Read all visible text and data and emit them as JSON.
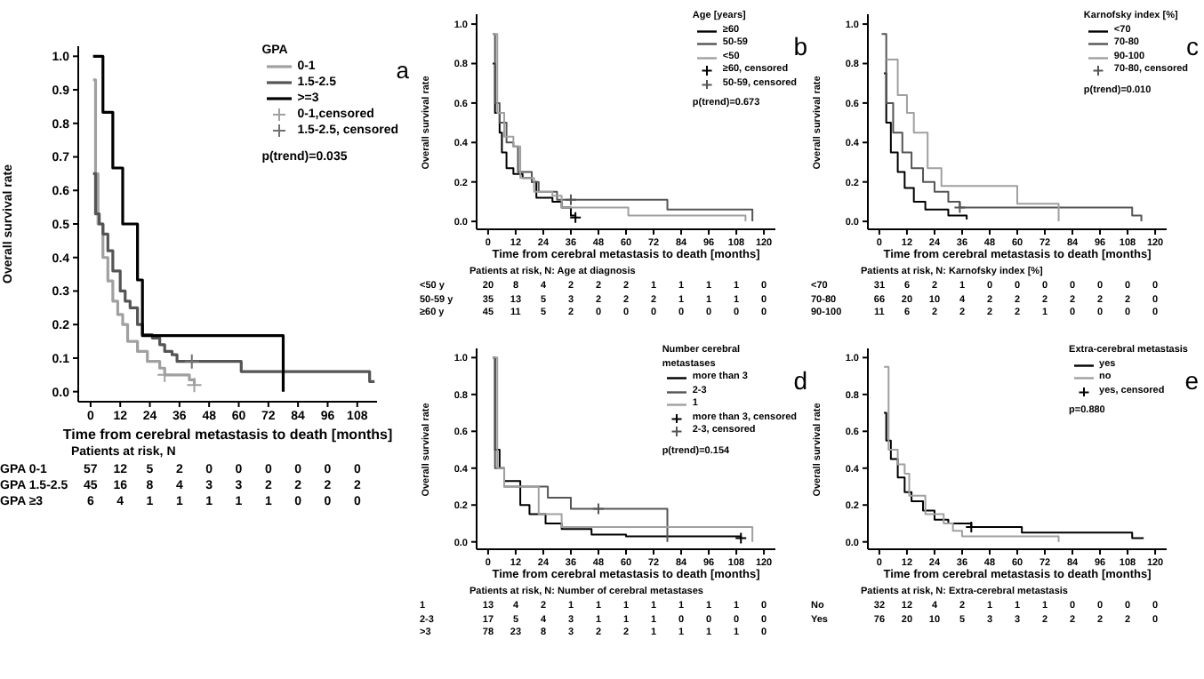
{
  "chart_data": [
    {
      "type": "step",
      "ylabel": "Overall survival rate",
      "xlabel": "Time from cerebral metastasis to death [months]",
      "legend_title": "GPA",
      "legend": "top right",
      "xlim": [
        -5,
        116
      ],
      "ylim": [
        -0.03,
        1.03
      ],
      "xticks": [
        0,
        12,
        24,
        36,
        48,
        60,
        72,
        84,
        96,
        108
      ],
      "yticks": [
        {
          "value": 0,
          "label": "0.0"
        },
        {
          "value": 0.1,
          "label": "0.1"
        },
        {
          "value": 0.2,
          "label": "0.2"
        },
        {
          "value": 0.3,
          "label": "0.3"
        },
        {
          "value": 0.4,
          "label": "0.4"
        },
        {
          "value": 0.5,
          "label": "0.5"
        },
        {
          "value": 0.6,
          "label": "0.6"
        },
        {
          "value": 0.7,
          "label": "0.7"
        },
        {
          "value": 0.8,
          "label": "0.8"
        },
        {
          "value": 0.9,
          "label": "0.9"
        },
        {
          "value": 1,
          "label": "1.0"
        }
      ],
      "series": [
        {
          "name": "0-1",
          "color": "#a0a0a0",
          "x": [
            1,
            2,
            3,
            5,
            7,
            9,
            11,
            13,
            15,
            19,
            23,
            28,
            30,
            40,
            42
          ],
          "values": [
            0.93,
            0.65,
            0.5,
            0.4,
            0.33,
            0.27,
            0.23,
            0.2,
            0.15,
            0.12,
            0.09,
            0.07,
            0.05,
            0.035,
            0.02
          ]
        },
        {
          "name": "1.5-2.5",
          "color": "#555555",
          "x": [
            1,
            2,
            3.5,
            5,
            7,
            9,
            12,
            14,
            16,
            19,
            21,
            25,
            28,
            30,
            33,
            35,
            61,
            113,
            115
          ],
          "values": [
            0.65,
            0.53,
            0.5,
            0.47,
            0.42,
            0.36,
            0.3,
            0.27,
            0.25,
            0.2,
            0.17,
            0.16,
            0.14,
            0.12,
            0.11,
            0.09,
            0.06,
            0.03,
            0.03
          ]
        },
        {
          "name": ">=3",
          "color": "#000000",
          "x": [
            1,
            5,
            9,
            13,
            19,
            21,
            78
          ],
          "values": [
            1,
            0.833,
            0.667,
            0.5,
            0.333,
            0.167,
            0
          ]
        },
        {
          "name": "0-1,censored",
          "type": "scatter",
          "marker": "cross",
          "color": "#a0a0a0",
          "x": [
            30,
            42
          ],
          "values": [
            0.05,
            0.02
          ]
        },
        {
          "name": "1.5-2.5, censored",
          "type": "scatter",
          "marker": "cross",
          "color": "#707070",
          "x": [
            41
          ],
          "values": [
            0.09
          ]
        }
      ],
      "annotations": [
        "a",
        "p(trend)=0.035",
        "Patients at risk, N",
        "GPA 0-1 57 12 5 2 0 0 0 0 0 0",
        "GPA 1.5-2.5 45 16 8 4 3 3 2 2 2 2",
        "GPA ≥3 6 4 1 1 1 1 1 0 0 0"
      ]
    },
    {
      "type": "step",
      "ylabel": "Overall survival rate",
      "xlabel": "Time from cerebral metastasis to death [months]",
      "legend_title": "Age [years]",
      "legend": "top right",
      "xlim": [
        -5,
        125
      ],
      "ylim": [
        -0.04,
        1.05
      ],
      "xticks": [
        0,
        12,
        24,
        36,
        48,
        60,
        72,
        84,
        96,
        108,
        120
      ],
      "yticks": [
        {
          "value": 0,
          "label": "0.0"
        },
        {
          "value": 0.2,
          "label": "0.2"
        },
        {
          "value": 0.4,
          "label": "0.4"
        },
        {
          "value": 0.6,
          "label": "0.6"
        },
        {
          "value": 0.8,
          "label": "0.8"
        },
        {
          "value": 1,
          "label": "1.0"
        }
      ],
      "series": [
        {
          "name": "≥60",
          "color": "#000000",
          "x": [
            2,
            3,
            5,
            6,
            8,
            11,
            15,
            19,
            21,
            28,
            32,
            36,
            38
          ],
          "values": [
            0.8,
            0.55,
            0.45,
            0.35,
            0.27,
            0.24,
            0.22,
            0.2,
            0.12,
            0.1,
            0.07,
            0.03,
            0.02
          ]
        },
        {
          "name": "50-59",
          "color": "#555555",
          "x": [
            2,
            3,
            5,
            8,
            11,
            13,
            19,
            22,
            30,
            78,
            115
          ],
          "values": [
            0.95,
            0.6,
            0.5,
            0.4,
            0.38,
            0.25,
            0.2,
            0.15,
            0.11,
            0.06,
            0
          ]
        },
        {
          "name": "<50",
          "color": "#a0a0a0",
          "x": [
            2,
            4,
            7,
            11,
            14,
            20,
            28,
            32,
            61,
            112
          ],
          "values": [
            0.95,
            0.55,
            0.43,
            0.38,
            0.22,
            0.15,
            0.13,
            0.07,
            0.03,
            0
          ]
        },
        {
          "name": "≥60, censored",
          "type": "scatter",
          "marker": "cross",
          "color": "#000000",
          "x": [
            38
          ],
          "values": [
            0.02
          ]
        },
        {
          "name": "50-59, censored",
          "type": "scatter",
          "marker": "cross",
          "color": "#555555",
          "x": [
            36
          ],
          "values": [
            0.11
          ]
        }
      ],
      "annotations": [
        "b",
        "p(trend)=0.673",
        "Patients at risk, N: Age at diagnosis",
        "<50 y 20 8 4 2 2 2 1 1 1 1 0",
        "50-59 y 35 13 5 3 2 2 2 1 1 1 0",
        "≥60 y 45 11 5 2 0 0 0 0 0 0 0"
      ]
    },
    {
      "type": "step",
      "ylabel": "Overall survival rate",
      "xlabel": "Time from cerebral metastasis to death [months]",
      "legend_title": "Karnofsky index [%]",
      "legend": "top right",
      "xlim": [
        -5,
        125
      ],
      "ylim": [
        -0.04,
        1.05
      ],
      "xticks": [
        0,
        12,
        24,
        36,
        48,
        60,
        72,
        84,
        96,
        108,
        120
      ],
      "yticks": [
        {
          "value": 0,
          "label": "0.0"
        },
        {
          "value": 0.2,
          "label": "0.2"
        },
        {
          "value": 0.4,
          "label": "0.4"
        },
        {
          "value": 0.6,
          "label": "0.6"
        },
        {
          "value": 0.8,
          "label": "0.8"
        },
        {
          "value": 1,
          "label": "1.0"
        }
      ],
      "series": [
        {
          "name": "<70",
          "color": "#000000",
          "x": [
            2,
            3,
            5,
            8,
            11,
            15,
            20,
            30,
            38
          ],
          "values": [
            0.75,
            0.5,
            0.35,
            0.25,
            0.17,
            0.1,
            0.06,
            0.03,
            0.01
          ]
        },
        {
          "name": "70-80",
          "color": "#555555",
          "x": [
            1,
            3,
            6,
            10,
            14,
            19,
            24,
            30,
            35,
            110,
            114
          ],
          "values": [
            0.95,
            0.6,
            0.45,
            0.35,
            0.27,
            0.2,
            0.15,
            0.1,
            0.07,
            0.03,
            0
          ]
        },
        {
          "name": "90-100",
          "color": "#a0a0a0",
          "x": [
            3,
            8,
            12,
            15,
            21,
            27,
            60,
            78
          ],
          "values": [
            0.82,
            0.64,
            0.55,
            0.45,
            0.27,
            0.18,
            0.09,
            0
          ]
        },
        {
          "name": "70-80, censored",
          "type": "scatter",
          "marker": "cross",
          "color": "#555555",
          "x": [
            35
          ],
          "values": [
            0.07
          ]
        }
      ],
      "annotations": [
        "c",
        "p(trend)=0.010",
        "Patients at risk, N: Karnofsky index [%]",
        "<70 31 6 2 1 0 0 0 0 0 0 0",
        "70-80 66 20 10 4 2 2 2 2 2 2 0",
        "90-100 11 6 2 2 2 2 1 0 0 0 0"
      ]
    },
    {
      "type": "step",
      "ylabel": "Overall survival rate",
      "xlabel": "Time from cerebral metastasis to death [months]",
      "legend_title": "Number cerebral metastases",
      "legend": "top right",
      "xlim": [
        -5,
        125
      ],
      "ylim": [
        -0.04,
        1.05
      ],
      "xticks": [
        0,
        12,
        24,
        36,
        48,
        60,
        72,
        84,
        96,
        108,
        120
      ],
      "yticks": [
        {
          "value": 0,
          "label": "0.0"
        },
        {
          "value": 0.2,
          "label": "0.2"
        },
        {
          "value": 0.4,
          "label": "0.4"
        },
        {
          "value": 0.6,
          "label": "0.6"
        },
        {
          "value": 0.8,
          "label": "0.8"
        },
        {
          "value": 1,
          "label": "1.0"
        }
      ],
      "series": [
        {
          "name": "more than 3",
          "color": "#000000",
          "x": [
            2,
            3,
            5,
            7,
            14,
            18,
            25,
            32,
            45,
            60,
            110
          ],
          "values": [
            1,
            0.5,
            0.4,
            0.33,
            0.2,
            0.15,
            0.1,
            0.07,
            0.04,
            0.03,
            0.02
          ]
        },
        {
          "name": "2-3",
          "color": "#555555",
          "x": [
            2,
            3,
            7,
            26,
            36,
            78
          ],
          "values": [
            1,
            0.4,
            0.3,
            0.24,
            0.18,
            0
          ]
        },
        {
          "name": "1",
          "color": "#a0a0a0",
          "x": [
            2,
            4,
            7,
            22,
            32,
            40,
            115
          ],
          "values": [
            1,
            0.4,
            0.3,
            0.15,
            0.08,
            0.08,
            0
          ]
        },
        {
          "name": "more than 3, censored",
          "type": "scatter",
          "marker": "cross",
          "color": "#000000",
          "x": [
            110
          ],
          "values": [
            0.02
          ]
        },
        {
          "name": "2-3, censored",
          "type": "scatter",
          "marker": "cross",
          "color": "#555555",
          "x": [
            48
          ],
          "values": [
            0.18
          ]
        }
      ],
      "annotations": [
        "d",
        "p(trend)=0.154",
        "Patients at risk, N: Number of cerebral metastases",
        "1 13 4 2 1 1 1 1 1 1 1 0",
        "2-3 17 5 4 3 1 1 1 0 0 0 0",
        ">3 78 23 8 3 2 2 1 1 1 1 0"
      ]
    },
    {
      "type": "step",
      "ylabel": "Overall survival rate",
      "xlabel": "Time from cerebral metastasis to death [months]",
      "legend_title": "Extra-cerebral metastasis",
      "legend": "top right",
      "xlim": [
        -5,
        125
      ],
      "ylim": [
        -0.04,
        1.05
      ],
      "xticks": [
        0,
        12,
        24,
        36,
        48,
        60,
        72,
        84,
        96,
        108,
        120
      ],
      "yticks": [
        {
          "value": 0,
          "label": "0.0"
        },
        {
          "value": 0.2,
          "label": "0.2"
        },
        {
          "value": 0.4,
          "label": "0.4"
        },
        {
          "value": 0.6,
          "label": "0.6"
        },
        {
          "value": 0.8,
          "label": "0.8"
        },
        {
          "value": 1,
          "label": "1.0"
        }
      ],
      "series": [
        {
          "name": "yes",
          "color": "#000000",
          "x": [
            2,
            3,
            5,
            8,
            11,
            14,
            19,
            24,
            30,
            40,
            62,
            110,
            115
          ],
          "values": [
            0.7,
            0.55,
            0.45,
            0.35,
            0.27,
            0.22,
            0.17,
            0.12,
            0.1,
            0.08,
            0.05,
            0.02,
            0.02
          ]
        },
        {
          "name": "no",
          "color": "#a0a0a0",
          "x": [
            2,
            4,
            8,
            11,
            13,
            20,
            28,
            32,
            36,
            78
          ],
          "values": [
            0.95,
            0.5,
            0.42,
            0.37,
            0.25,
            0.15,
            0.1,
            0.06,
            0.03,
            0
          ]
        },
        {
          "name": "yes, censored",
          "type": "scatter",
          "marker": "cross",
          "color": "#000000",
          "x": [
            40
          ],
          "values": [
            0.08
          ]
        }
      ],
      "annotations": [
        "e",
        "p=0.880",
        "Patients at risk, N: Extra-cerebral metastasis",
        "No 32 12 4 2 1 1 1 0 0 0 0",
        "Yes 76 20 10 5 3 3 2 2 2 2 0"
      ]
    }
  ]
}
